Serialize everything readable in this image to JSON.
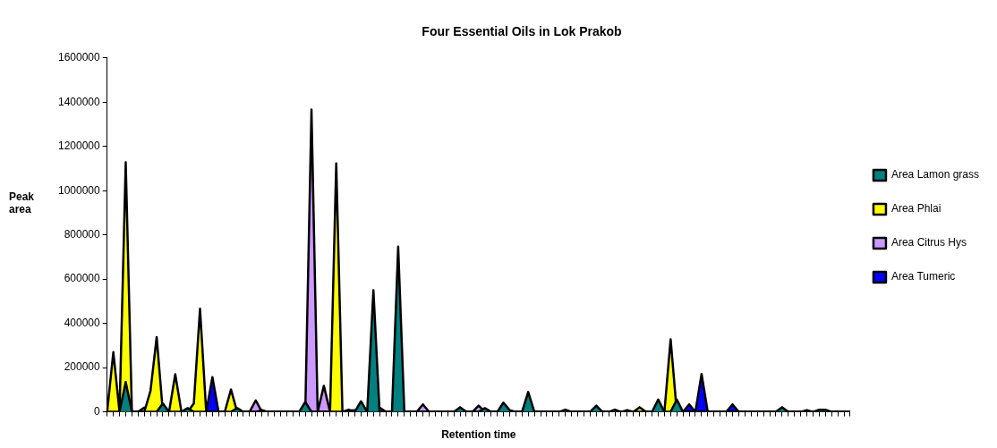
{
  "chart_data": {
    "type": "area",
    "title": "Four Essential Oils in Lok Prakob",
    "xlabel": "Retention time",
    "ylabel": "Peak area",
    "categories": [
      null,
      null,
      null,
      null,
      null,
      null,
      null,
      null,
      null,
      null,
      null,
      null,
      null,
      null,
      null,
      null,
      null,
      null,
      null,
      null,
      null,
      null,
      null,
      null,
      null,
      null,
      null,
      null,
      null,
      null,
      null,
      null,
      null,
      null,
      null,
      null,
      null,
      null,
      null,
      null,
      null,
      null,
      null,
      null,
      null,
      null,
      null,
      null,
      null,
      null,
      null,
      null,
      null,
      null,
      null,
      null,
      null,
      null,
      null,
      null,
      null,
      null,
      null,
      null,
      null,
      null,
      null,
      null,
      null,
      null,
      null,
      null,
      null,
      null,
      null,
      null,
      null,
      null,
      null,
      null,
      null,
      null,
      null,
      null,
      null,
      null,
      null,
      null,
      null,
      null,
      null,
      null,
      null,
      null,
      null,
      null,
      null,
      null,
      null,
      null,
      null,
      null,
      null,
      null,
      null,
      null,
      null,
      null,
      null,
      null,
      null,
      null,
      null,
      null,
      null,
      null,
      null,
      null,
      null,
      null,
      null
    ],
    "series": [
      {
        "name": "Area Tumeric",
        "color": "#0000ff",
        "values": [
          0,
          0,
          0,
          0,
          0,
          0,
          0,
          0,
          0,
          0,
          0,
          0,
          0,
          0,
          0,
          0,
          0,
          157000,
          0,
          0,
          0,
          0,
          0,
          0,
          0,
          0,
          0,
          0,
          0,
          0,
          0,
          0,
          0,
          0,
          0,
          0,
          0,
          0,
          0,
          5000,
          8000,
          0,
          0,
          0,
          0,
          0,
          0,
          0,
          0,
          0,
          0,
          0,
          0,
          0,
          0,
          0,
          0,
          0,
          0,
          0,
          0,
          0,
          0,
          0,
          0,
          0,
          0,
          0,
          0,
          0,
          0,
          0,
          0,
          0,
          0,
          0,
          0,
          0,
          0,
          0,
          0,
          0,
          0,
          0,
          0,
          0,
          0,
          0,
          0,
          0,
          0,
          0,
          0,
          0,
          34000,
          0,
          171000,
          0,
          0,
          0,
          0,
          34000,
          0,
          0,
          0,
          0,
          0,
          0,
          0,
          0,
          0,
          0,
          0,
          0,
          0,
          0,
          0,
          0,
          0,
          0,
          0
        ]
      },
      {
        "name": "Area Citrus Hys",
        "color": "#cc99ff",
        "values": [
          0,
          0,
          0,
          0,
          0,
          0,
          20000,
          0,
          0,
          0,
          0,
          0,
          0,
          0,
          0,
          0,
          0,
          0,
          0,
          0,
          0,
          0,
          0,
          0,
          52000,
          0,
          0,
          0,
          0,
          0,
          0,
          0,
          0,
          1367000,
          0,
          118000,
          0,
          0,
          0,
          10000,
          0,
          0,
          0,
          0,
          20000,
          0,
          0,
          0,
          0,
          0,
          0,
          34000,
          0,
          0,
          0,
          0,
          0,
          0,
          0,
          0,
          28000,
          0,
          0,
          0,
          0,
          0,
          0,
          0,
          0,
          0,
          0,
          0,
          0,
          0,
          0,
          0,
          0,
          0,
          0,
          0,
          0,
          0,
          0,
          0,
          0,
          0,
          0,
          0,
          0,
          0,
          0,
          0,
          0,
          0,
          0,
          0,
          0,
          0,
          0,
          0,
          0,
          0,
          0,
          0,
          0,
          0,
          0,
          0,
          0,
          0,
          0,
          0,
          0,
          0,
          0,
          0,
          0,
          0,
          0,
          0,
          0
        ]
      },
      {
        "name": "Area Phlai",
        "color": "#ffff00",
        "values": [
          0,
          270000,
          0,
          1128000,
          0,
          0,
          0,
          95000,
          338000,
          0,
          0,
          170000,
          0,
          0,
          38000,
          466000,
          0,
          0,
          0,
          0,
          101000,
          0,
          0,
          0,
          0,
          0,
          0,
          0,
          0,
          0,
          0,
          0,
          0,
          0,
          0,
          0,
          0,
          1123000,
          0,
          0,
          0,
          0,
          0,
          0,
          0,
          0,
          0,
          0,
          0,
          0,
          0,
          0,
          0,
          0,
          0,
          0,
          0,
          0,
          0,
          0,
          0,
          0,
          0,
          0,
          0,
          0,
          0,
          0,
          0,
          0,
          0,
          0,
          0,
          0,
          0,
          0,
          0,
          0,
          0,
          0,
          0,
          0,
          0,
          0,
          0,
          0,
          21000,
          0,
          0,
          0,
          0,
          328000,
          0,
          0,
          0,
          0,
          0,
          0,
          0,
          0,
          0,
          0,
          0,
          0,
          0,
          0,
          0,
          0,
          0,
          0,
          0,
          0,
          0,
          0,
          0,
          0,
          0,
          0,
          0,
          0,
          0
        ]
      },
      {
        "name": "Area Lamon grass",
        "color": "#008080",
        "values": [
          0,
          0,
          0,
          135000,
          0,
          0,
          0,
          0,
          0,
          38000,
          0,
          0,
          0,
          17000,
          0,
          0,
          0,
          0,
          0,
          0,
          0,
          17000,
          0,
          0,
          0,
          8000,
          0,
          0,
          0,
          0,
          0,
          0,
          45000,
          0,
          0,
          0,
          0,
          0,
          0,
          0,
          0,
          48000,
          0,
          550000,
          0,
          0,
          0,
          747000,
          0,
          0,
          0,
          0,
          0,
          0,
          0,
          0,
          0,
          21000,
          0,
          0,
          0,
          17000,
          0,
          0,
          42000,
          8000,
          0,
          0,
          90000,
          0,
          0,
          0,
          0,
          0,
          10000,
          0,
          0,
          0,
          0,
          28000,
          0,
          0,
          10000,
          0,
          8000,
          0,
          0,
          0,
          0,
          56000,
          0,
          0,
          56000,
          0,
          0,
          0,
          0,
          0,
          0,
          0,
          0,
          0,
          0,
          0,
          0,
          0,
          0,
          0,
          0,
          21000,
          0,
          0,
          0,
          8000,
          0,
          10000,
          10000,
          0,
          0,
          0,
          0
        ]
      }
    ],
    "ylim": [
      0,
      1600000
    ],
    "yticks": [
      0,
      200000,
      400000,
      600000,
      800000,
      1000000,
      1200000,
      1400000,
      1600000
    ],
    "grid": false,
    "legend": "right",
    "tick_labels": "y"
  }
}
